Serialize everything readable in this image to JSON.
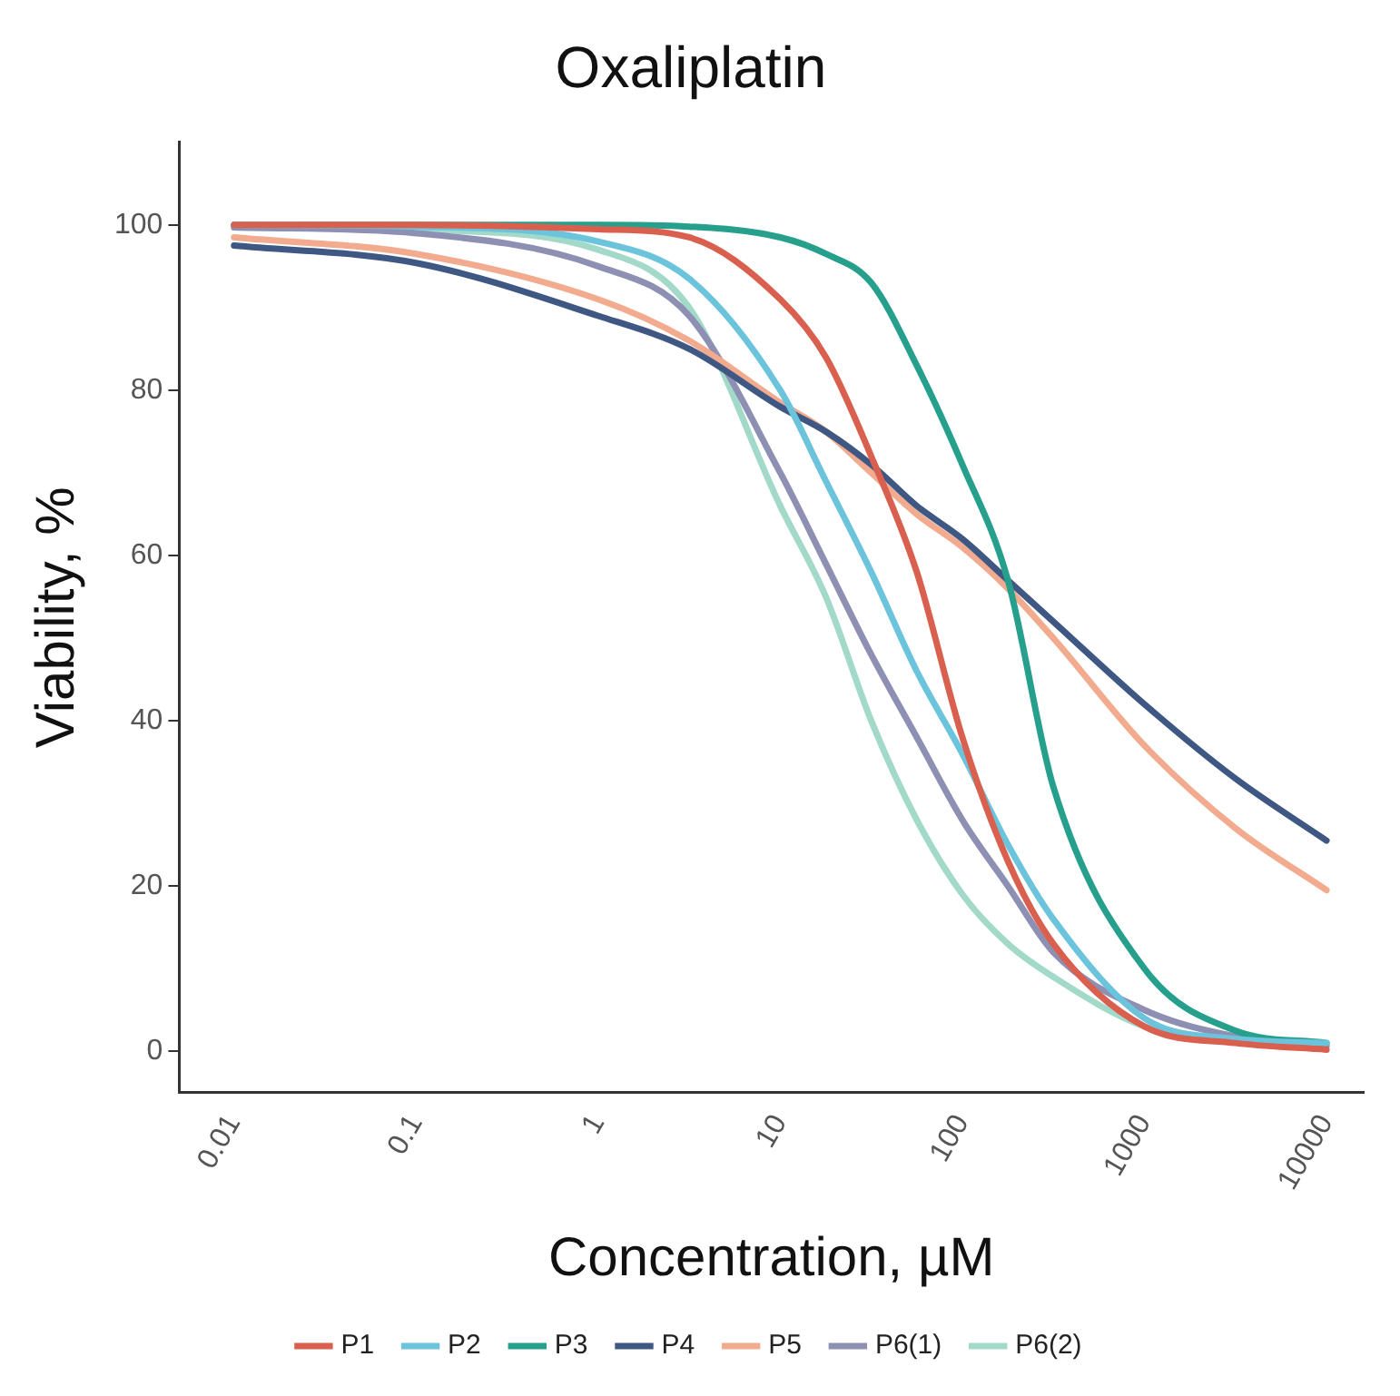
{
  "chart_data": {
    "type": "line",
    "title": "Oxaliplatin",
    "xlabel": "Concentration, µM",
    "ylabel": "Viability, %",
    "x": [
      0.01,
      0.1,
      1,
      3.16,
      10,
      17.8,
      31.6,
      56.2,
      100,
      178,
      316,
      1000,
      3162,
      10000
    ],
    "series": [
      {
        "name": "P1",
        "color": "#d9604f",
        "values": [
          100,
          100,
          99.5,
          98.5,
          91,
          84,
          72,
          58,
          38,
          23,
          13,
          3,
          1,
          0.2
        ]
      },
      {
        "name": "P2",
        "color": "#6cc4dc",
        "values": [
          100,
          99.8,
          98,
          93.5,
          80,
          69,
          58,
          46,
          36,
          25,
          16,
          4,
          1.5,
          1
        ]
      },
      {
        "name": "P3",
        "color": "#26a08c",
        "values": [
          100,
          100,
          100,
          99.8,
          98.5,
          96.5,
          93,
          83,
          71,
          57,
          32,
          10,
          2.5,
          1
        ]
      },
      {
        "name": "P4",
        "color": "#3f5783",
        "values": [
          97.5,
          95.4,
          89,
          85,
          78,
          75,
          71,
          66,
          62,
          57,
          52,
          42,
          33,
          25.5
        ]
      },
      {
        "name": "P5",
        "color": "#f2ab8e",
        "values": [
          98.5,
          96.5,
          91,
          86,
          78.5,
          75,
          70,
          65,
          61,
          56,
          50,
          37,
          27,
          19.5
        ]
      },
      {
        "name": "P6(1)",
        "color": "#8d8fb3",
        "values": [
          99.7,
          99,
          95,
          89,
          70,
          59,
          48,
          38,
          28,
          20,
          12,
          5,
          1.8,
          0.6
        ]
      },
      {
        "name": "P6(2)",
        "color": "#a3d9c9",
        "values": [
          100,
          99.5,
          97,
          90,
          66,
          55,
          40,
          28,
          19,
          13,
          9,
          3,
          1.2,
          0.8
        ]
      }
    ],
    "log": "x",
    "xlim": [
      0.005,
      16000
    ],
    "xticks": [
      0.01,
      0.1,
      1,
      10,
      100,
      1000,
      10000
    ],
    "ylim": [
      -5,
      110
    ],
    "yticks": [
      0,
      20,
      40,
      60,
      80,
      100
    ],
    "grid": false,
    "legend": "bottom",
    "marker": "none",
    "line_style": "solid"
  }
}
